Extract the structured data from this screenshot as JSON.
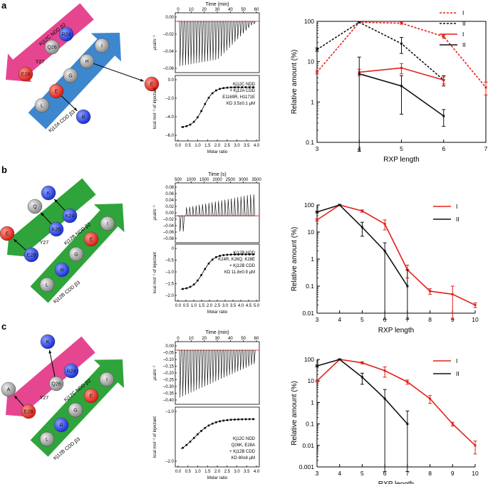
{
  "panels": [
    {
      "letter": "a",
      "strands": {
        "top": {
          "label": "Kj12C NDD β2",
          "color": "#e5468f",
          "residues": [
            {
              "id": "R24",
              "kind": "blue"
            },
            {
              "id": "Q26",
              "kind": "gray"
            },
            {
              "id": "Y27",
              "kind": "none"
            },
            {
              "id": "E28",
              "kind": "red"
            }
          ]
        },
        "bottom": {
          "label": "Kj12A CDD β3",
          "color": "#3d87cf",
          "residues": [
            {
              "id": "I",
              "kind": "gray"
            },
            {
              "id": "H",
              "kind": "gray"
            },
            {
              "id": "G",
              "kind": "gray"
            },
            {
              "id": "E",
              "kind": "red"
            },
            {
              "id": "L",
              "kind": "gray"
            }
          ]
        },
        "mutations": [
          {
            "id": "E",
            "kind": "red"
          },
          {
            "id": "R",
            "kind": "blue"
          }
        ]
      },
      "itc": {
        "top_axis_label": "Time (min)",
        "top_ticks": [
          "0",
          "10",
          "20",
          "30",
          "40",
          "50",
          "60"
        ],
        "top_ylabel": "μcal/s⁻¹",
        "top_yticks": [
          "0.00",
          "–0.02",
          "–0.04",
          "–0.06"
        ],
        "bottom_ylabel": "kcal mol⁻¹ of injectant",
        "bottom_yticks": [
          "0.0",
          "–2.0",
          "–4.0",
          "–6.0"
        ],
        "bottom_xticks": [
          "0.0",
          "0.5",
          "1.0",
          "1.5",
          "2.0",
          "2.5",
          "3.0",
          "3.5",
          "4.0"
        ],
        "xlabel": "Molar ratio",
        "annotation": [
          "Kj12C NDD",
          "+ Kj12A CDD",
          "E1169R, H1171E",
          "KD 3.5±0.1 μM"
        ]
      }
    },
    {
      "letter": "b",
      "strands": {
        "top": {
          "label": "Kj12B NDD β2",
          "color": "#2fa43a",
          "residues": [
            {
              "id": "K24",
              "kind": "blue"
            },
            {
              "id": "K26",
              "kind": "blue"
            },
            {
              "id": "Y27",
              "kind": "none"
            },
            {
              "id": "E28",
              "kind": "blue"
            }
          ]
        },
        "bottom": {
          "label": "Kj12B CDD β3",
          "color": "#2fa43a",
          "residues": [
            {
              "id": "I",
              "kind": "gray"
            },
            {
              "id": "E",
              "kind": "red"
            },
            {
              "id": "G",
              "kind": "gray"
            },
            {
              "id": "R",
              "kind": "blue"
            },
            {
              "id": "L",
              "kind": "gray"
            }
          ]
        },
        "mutations": [
          {
            "id": "K",
            "kind": "blue"
          },
          {
            "id": "Q",
            "kind": "gray"
          },
          {
            "id": "E",
            "kind": "red"
          }
        ]
      },
      "itc": {
        "top_axis_label": "Time (s)",
        "top_ticks": [
          "500",
          "1000",
          "1500",
          "2000",
          "2500",
          "3000",
          "3500"
        ],
        "top_ylabel": "μcal/s⁻¹",
        "top_yticks": [
          "0.08",
          "0.06",
          "0.04",
          "0.02",
          "0.00",
          "–0.02",
          "–0.04",
          "–0.06",
          "–0.08"
        ],
        "bottom_ylabel": "kcal mol⁻¹ of injectant",
        "bottom_yticks": [
          "0",
          "–0.5",
          "–1.0",
          "–1.5",
          "–2.0"
        ],
        "bottom_xticks": [
          "0.0",
          "0.5",
          "1.0",
          "1.5",
          "2.0",
          "2.5",
          "3.0",
          "3.5",
          "4.0",
          "4.5",
          "5.0"
        ],
        "xlabel": "Molar ratio",
        "annotation": [
          "Kj12B NDD",
          "K24R, K26Q, K28E",
          "+ Kj12B CDD",
          "KD 11.8±0.9 μM"
        ]
      }
    },
    {
      "letter": "c",
      "strands": {
        "top": {
          "label": "Kj12C NDD β2",
          "color": "#e5468f",
          "residues": [
            {
              "id": "R24",
              "kind": "blue"
            },
            {
              "id": "Q26",
              "kind": "gray"
            },
            {
              "id": "Y27",
              "kind": "none"
            },
            {
              "id": "E28",
              "kind": "red"
            }
          ]
        },
        "bottom": {
          "label": "Kj12B CDD β3",
          "color": "#2fa43a",
          "residues": [
            {
              "id": "I",
              "kind": "gray"
            },
            {
              "id": "E",
              "kind": "red"
            },
            {
              "id": "G",
              "kind": "gray"
            },
            {
              "id": "R",
              "kind": "blue"
            },
            {
              "id": "L",
              "kind": "gray"
            }
          ]
        },
        "mutations": [
          {
            "id": "K",
            "kind": "blue"
          },
          {
            "id": "A",
            "kind": "gray"
          }
        ]
      },
      "itc": {
        "top_axis_label": "Time (min)",
        "top_ticks": [
          "0",
          "10",
          "20",
          "30",
          "40",
          "50",
          "60"
        ],
        "top_ylabel": "μcal/s⁻¹",
        "top_yticks": [
          "0.00",
          "–0.05",
          "–0.10",
          "–0.15",
          "–0.20",
          "–0.25",
          "–0.30",
          "–0.35",
          "–0.40"
        ],
        "bottom_ylabel": "kcal mol⁻¹ of injectant",
        "bottom_yticks": [
          "–1.0",
          "–2.0"
        ],
        "bottom_xticks": [
          "0.0",
          "0.5",
          "1.0",
          "1.5",
          "2.0",
          "2.5",
          "3.0",
          "3.5",
          "4.0"
        ],
        "xlabel": "Molar ratio",
        "annotation": [
          "Kj12C NDD",
          "Q26K, E28A",
          "+ Kj12B CDD",
          "KD 80±8 μM"
        ]
      }
    }
  ],
  "colors": {
    "red": "#e32119",
    "black": "#111111",
    "blue_residue": "#1a2fd6",
    "red_residue": "#e82020",
    "gray_residue": "#9a9a9a"
  },
  "chart_data": [
    {
      "type": "line",
      "title": "",
      "xlabel": "RXP length",
      "ylabel": "Relative amount (%)",
      "yscale": "log",
      "xlim": [
        3,
        7
      ],
      "ylim": [
        0.1,
        100
      ],
      "xticks": [
        "3",
        "4",
        "5",
        "6",
        "7"
      ],
      "yticks": [
        "0.1",
        "1",
        "10",
        "100"
      ],
      "legend": [
        "I",
        "II",
        "I",
        "II"
      ],
      "series": [
        {
          "name": "I",
          "style": "dashed",
          "color": "red",
          "x": [
            3,
            4,
            5,
            6,
            7
          ],
          "y": [
            5.5,
            95,
            90,
            42,
            2.3
          ],
          "err": [
            0.5,
            3,
            5,
            4,
            0.8
          ]
        },
        {
          "name": "II",
          "style": "dashed",
          "color": "black",
          "x": [
            3,
            4,
            5,
            6
          ],
          "y": [
            20,
            95,
            28,
            3.5
          ],
          "err": [
            2,
            3,
            12,
            1
          ]
        },
        {
          "name": "I",
          "style": "solid",
          "color": "red",
          "x": [
            4,
            5,
            6
          ],
          "y": [
            5.5,
            7,
            3.5
          ],
          "err": [
            1,
            2,
            0.7
          ]
        },
        {
          "name": "II",
          "style": "solid",
          "color": "black",
          "x": [
            4,
            5,
            6
          ],
          "y": [
            5,
            2.5,
            0.45
          ],
          "err": [
            8,
            2,
            0.2
          ]
        }
      ]
    },
    {
      "type": "line",
      "title": "",
      "xlabel": "RXP length",
      "ylabel": "Relative amount (%)",
      "yscale": "log",
      "xlim": [
        3,
        10
      ],
      "ylim": [
        0.01,
        100
      ],
      "xticks": [
        "3",
        "4",
        "5",
        "6",
        "7",
        "8",
        "9",
        "10"
      ],
      "yticks": [
        "0.01",
        "0.1",
        "1",
        "10",
        "100"
      ],
      "legend": [
        "I",
        "II"
      ],
      "series": [
        {
          "name": "I",
          "style": "solid",
          "color": "red",
          "x": [
            3,
            4,
            5,
            6,
            7,
            8,
            9,
            10
          ],
          "y": [
            28,
            100,
            60,
            20,
            0.4,
            0.065,
            0.05,
            0.02
          ],
          "err": [
            3,
            5,
            6,
            8,
            0.2,
            0.015,
            0.05,
            0.004
          ]
        },
        {
          "name": "II",
          "style": "solid",
          "color": "black",
          "x": [
            3,
            4,
            5,
            6,
            7
          ],
          "y": [
            55,
            100,
            15,
            2,
            0.1
          ],
          "err": [
            4,
            5,
            8,
            2,
            0.3
          ]
        }
      ]
    },
    {
      "type": "line",
      "title": "",
      "xlabel": "RXP length",
      "ylabel": "Relative amount (%)",
      "yscale": "log",
      "xlim": [
        3,
        10
      ],
      "ylim": [
        0.001,
        100
      ],
      "xticks": [
        "3",
        "4",
        "5",
        "6",
        "7",
        "8",
        "9",
        "10"
      ],
      "yticks": [
        "0.001",
        "0.01",
        "0.1",
        "1",
        "10",
        "100"
      ],
      "legend": [
        "I",
        "II"
      ],
      "series": [
        {
          "name": "I",
          "style": "solid",
          "color": "red",
          "x": [
            3,
            4,
            5,
            6,
            7,
            8,
            9,
            10
          ],
          "y": [
            10,
            100,
            70,
            30,
            9,
            1.5,
            0.1,
            0.01
          ],
          "err": [
            1,
            5,
            8,
            15,
            2,
            0.6,
            0.02,
            0.006
          ]
        },
        {
          "name": "II",
          "style": "solid",
          "color": "black",
          "x": [
            3,
            4,
            5,
            6,
            7
          ],
          "y": [
            50,
            100,
            15,
            1.5,
            0.1
          ],
          "err": [
            5,
            5,
            8,
            2.5,
            0.3
          ]
        }
      ]
    }
  ]
}
